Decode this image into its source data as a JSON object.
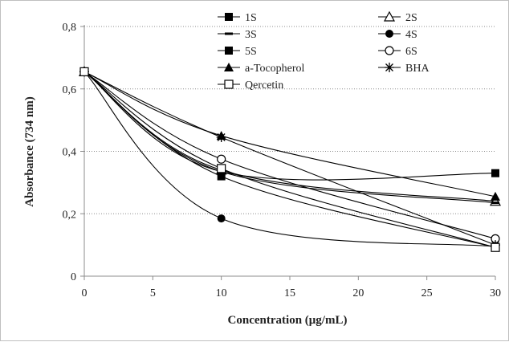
{
  "chart_data": {
    "type": "line",
    "xlabel": "Concentration (μg/mL)",
    "ylabel": "Absorbance (734 nm)",
    "x": [
      0,
      10,
      30
    ],
    "xlim": [
      0,
      30
    ],
    "ylim": [
      0,
      0.8
    ],
    "xticks": [
      "0",
      "5",
      "10",
      "15",
      "20",
      "25",
      "30"
    ],
    "yticks": [
      "0",
      "0,2",
      "0,4",
      "0,6",
      "0,8"
    ],
    "grid": "horizontal dotted",
    "legend_position": "top-right",
    "series": [
      {
        "name": "1S",
        "values": [
          0.655,
          0.32,
          0.092
        ],
        "marker": "square-filled"
      },
      {
        "name": "2S",
        "values": [
          0.655,
          0.34,
          0.24
        ],
        "marker": "triangle-open"
      },
      {
        "name": "3S",
        "values": [
          0.655,
          0.335,
          0.235
        ],
        "marker": "dash"
      },
      {
        "name": "4S",
        "values": [
          0.655,
          0.185,
          0.095
        ],
        "marker": "circle-filled"
      },
      {
        "name": "5S",
        "values": [
          0.655,
          0.335,
          0.33
        ],
        "marker": "square-filled"
      },
      {
        "name": "6S",
        "values": [
          0.655,
          0.375,
          0.12
        ],
        "marker": "circle-open"
      },
      {
        "name": "a-Tocopherol",
        "values": [
          0.655,
          0.45,
          0.255
        ],
        "marker": "triangle-filled"
      },
      {
        "name": "BHA",
        "values": [
          0.655,
          0.445,
          0.1
        ],
        "marker": "star"
      },
      {
        "name": "Qercetin",
        "values": [
          0.655,
          0.345,
          0.092
        ],
        "marker": "square-open"
      }
    ]
  }
}
